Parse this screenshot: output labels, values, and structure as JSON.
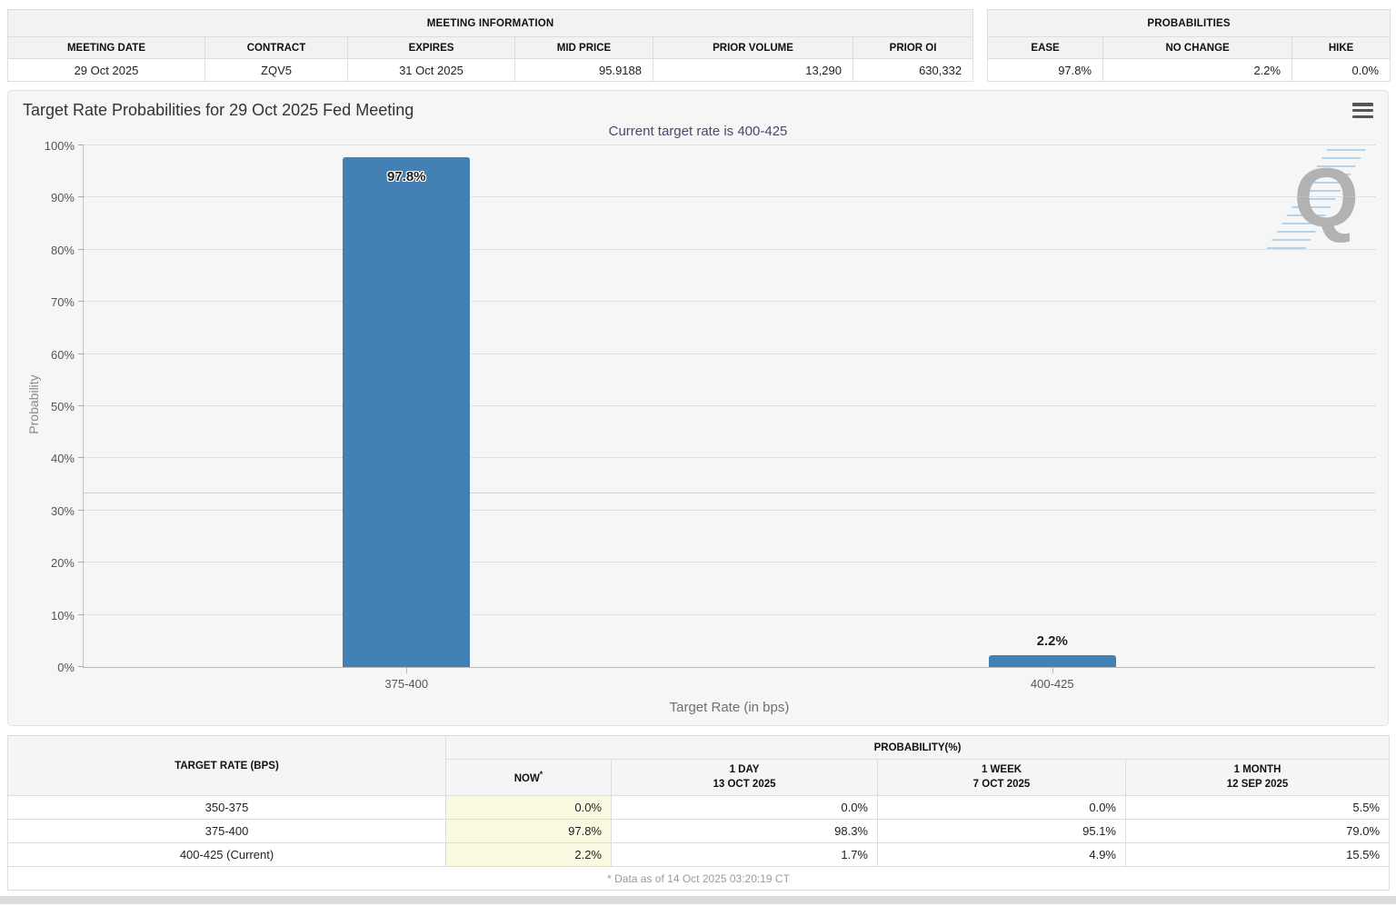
{
  "meeting_info": {
    "title": "MEETING INFORMATION",
    "columns": [
      "MEETING DATE",
      "CONTRACT",
      "EXPIRES",
      "MID PRICE",
      "PRIOR VOLUME",
      "PRIOR OI"
    ],
    "values": [
      "29 Oct 2025",
      "ZQV5",
      "31 Oct 2025",
      "95.9188",
      "13,290",
      "630,332"
    ]
  },
  "probabilities_summary": {
    "title": "PROBABILITIES",
    "columns": [
      "EASE",
      "NO CHANGE",
      "HIKE"
    ],
    "values": [
      "97.8%",
      "2.2%",
      "0.0%"
    ]
  },
  "chart_data": {
    "type": "bar",
    "title": "Target Rate Probabilities for 29 Oct 2025 Fed Meeting",
    "subtitle": "Current target rate is 400-425",
    "categories": [
      "375-400",
      "400-425"
    ],
    "values": [
      97.8,
      2.2
    ],
    "value_labels": [
      "97.8%",
      "2.2%"
    ],
    "xlabel": "Target Rate (in bps)",
    "ylabel": "Probability",
    "ylim": [
      0,
      100
    ],
    "ytick_step": 10,
    "ytick_suffix": "%",
    "grid": "horizontal-dotted",
    "reference_line_y": 33.3,
    "bar_color": "#4381b5",
    "legend": "none",
    "watermark_letter": "Q",
    "menu_icon": "hamburger-icon"
  },
  "history_table": {
    "col1_header": "TARGET RATE (BPS)",
    "group_header": "PROBABILITY(%)",
    "sub_headers": [
      {
        "label": "NOW",
        "sup": "*",
        "sub": ""
      },
      {
        "label": "1 DAY",
        "sup": "",
        "sub": "13 OCT 2025"
      },
      {
        "label": "1 WEEK",
        "sup": "",
        "sub": "7 OCT 2025"
      },
      {
        "label": "1 MONTH",
        "sup": "",
        "sub": "12 SEP 2025"
      }
    ],
    "rows": [
      {
        "rate": "350-375",
        "now": "0.0%",
        "day": "0.0%",
        "week": "0.0%",
        "month": "5.5%"
      },
      {
        "rate": "375-400",
        "now": "97.8%",
        "day": "98.3%",
        "week": "95.1%",
        "month": "79.0%"
      },
      {
        "rate": "400-425 (Current)",
        "now": "2.2%",
        "day": "1.7%",
        "week": "4.9%",
        "month": "15.5%"
      }
    ],
    "footnote": "* Data as of 14 Oct 2025 03:20:19 CT"
  },
  "colors": {
    "bar": "#4381b5",
    "now_highlight": "#fafae1",
    "subtitle_text": "#444c70",
    "panel_background": "#f6f6f6"
  }
}
